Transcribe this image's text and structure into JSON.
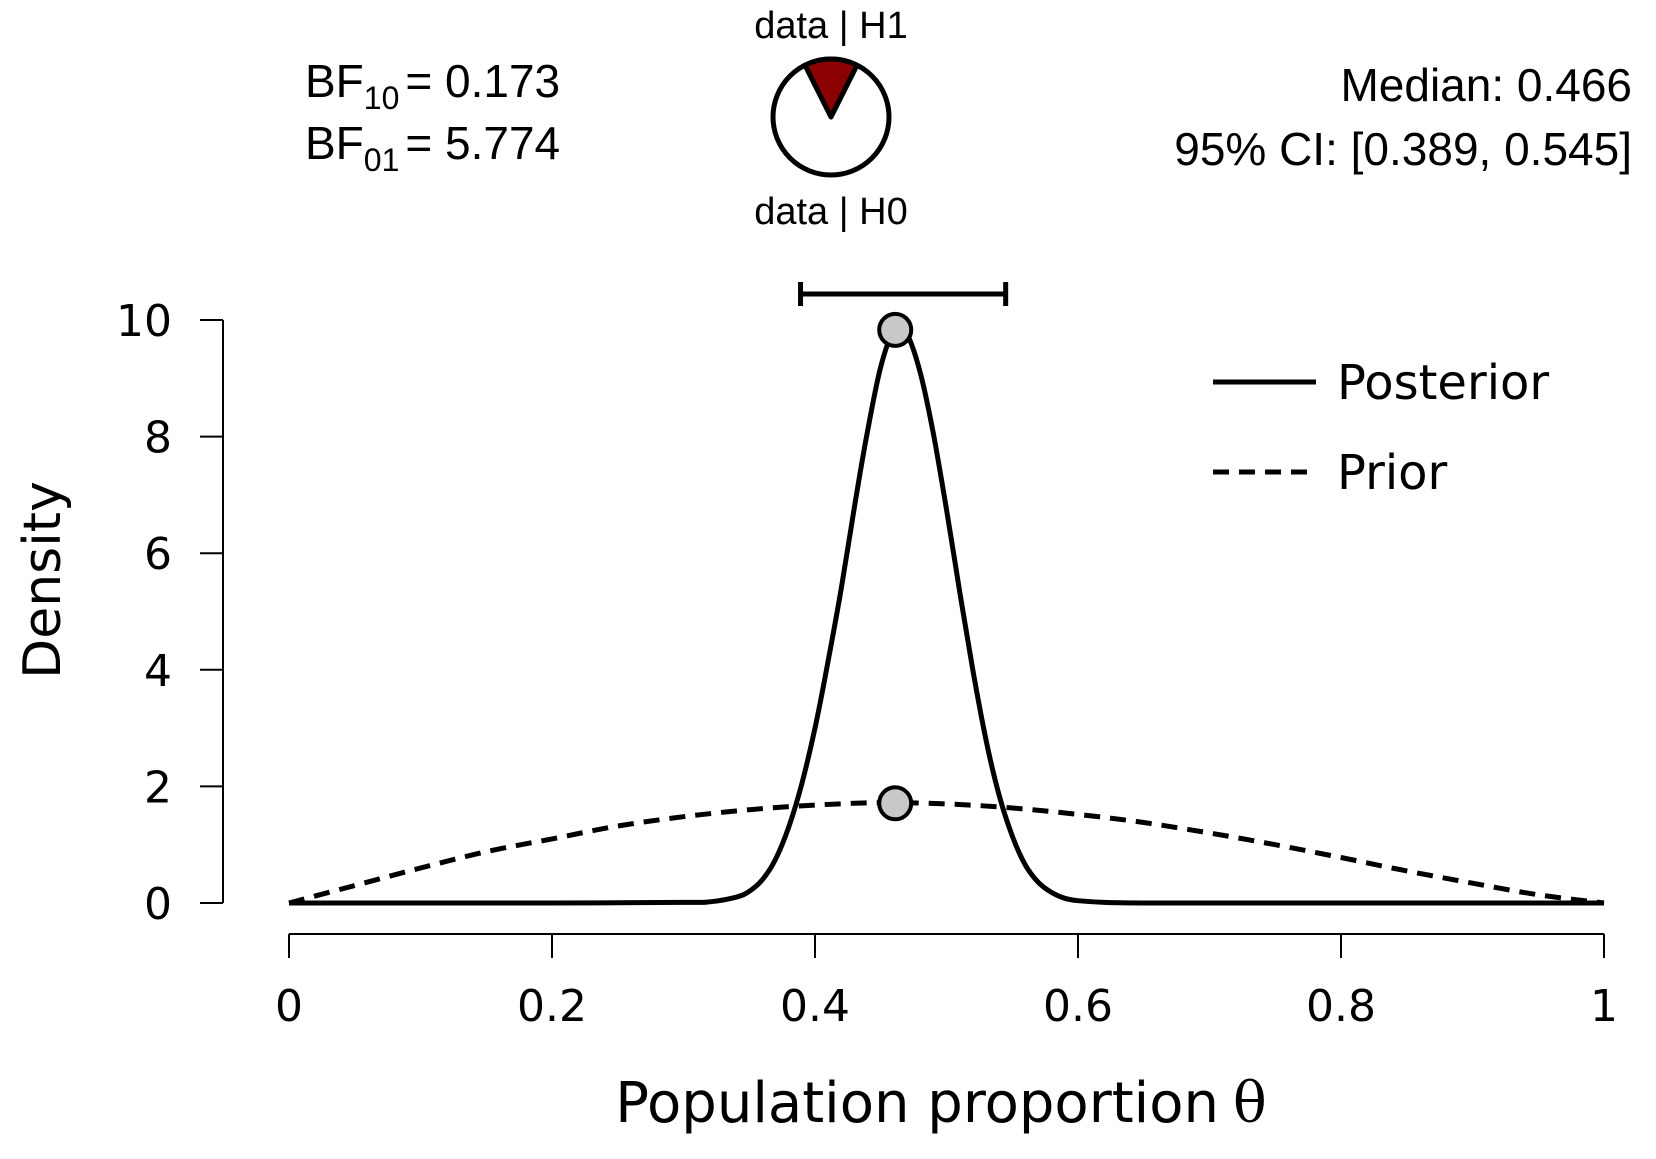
{
  "chart_data": {
    "type": "line",
    "xlabel": "Population proportion",
    "xlabel_symbol": "θ",
    "ylabel": "Density",
    "xlim": [
      0,
      1
    ],
    "ylim": [
      0,
      10
    ],
    "x_ticks": [
      "0",
      "0.2",
      "0.4",
      "0.6",
      "0.8",
      "1"
    ],
    "y_ticks": [
      "0",
      "2",
      "4",
      "6",
      "8",
      "10"
    ],
    "grid": false,
    "legend_position": "top-right",
    "series": [
      {
        "name": "Posterior",
        "style": "solid",
        "x": [
          0,
          0.1,
          0.2,
          0.3,
          0.32,
          0.34,
          0.35,
          0.36,
          0.37,
          0.38,
          0.39,
          0.4,
          0.41,
          0.42,
          0.43,
          0.44,
          0.45,
          0.46,
          0.47,
          0.48,
          0.49,
          0.5,
          0.51,
          0.52,
          0.53,
          0.54,
          0.55,
          0.56,
          0.57,
          0.58,
          0.59,
          0.6,
          0.62,
          0.65,
          0.7,
          0.8,
          0.9,
          1
        ],
        "y": [
          0,
          0,
          0,
          0.01,
          0.02,
          0.1,
          0.2,
          0.4,
          0.75,
          1.3,
          2.05,
          3.0,
          4.15,
          5.4,
          6.8,
          8.1,
          9.2,
          9.8,
          9.75,
          9.1,
          8.05,
          6.75,
          5.35,
          4.0,
          2.8,
          1.85,
          1.15,
          0.65,
          0.35,
          0.18,
          0.08,
          0.04,
          0.01,
          0,
          0,
          0,
          0,
          0
        ]
      },
      {
        "name": "Prior",
        "style": "dashed",
        "x": [
          0,
          0.05,
          0.1,
          0.15,
          0.2,
          0.25,
          0.3,
          0.35,
          0.4,
          0.45,
          0.5,
          0.55,
          0.6,
          0.65,
          0.7,
          0.75,
          0.8,
          0.85,
          0.9,
          0.95,
          1
        ],
        "y": [
          0,
          0.3,
          0.6,
          0.88,
          1.1,
          1.32,
          1.48,
          1.6,
          1.68,
          1.72,
          1.7,
          1.63,
          1.52,
          1.38,
          1.2,
          1.0,
          0.78,
          0.55,
          0.34,
          0.14,
          0
        ]
      }
    ],
    "points": [
      {
        "series": "Posterior",
        "x": 0.461,
        "y": 9.83
      },
      {
        "series": "Prior",
        "x": 0.461,
        "y": 1.71
      }
    ],
    "credible_interval": {
      "lower": 0.389,
      "upper": 0.545,
      "level": "95%"
    },
    "annotations": {
      "bf10_label": "BF",
      "bf10_sub": "10",
      "bf10_value": "= 0.173",
      "bf01_label": "BF",
      "bf01_sub": "01",
      "bf01_value": "= 5.774",
      "median": "Median: 0.466",
      "ci": "95% CI: [0.389, 0.545]",
      "pie_top_label": "data | H1",
      "pie_bottom_label": "data | H0"
    },
    "pie": {
      "values": [
        {
          "label": "data | H1",
          "value": 0.148,
          "color": "#8b0000"
        },
        {
          "label": "data | H0",
          "value": 0.852,
          "color": "#ffffff"
        }
      ]
    },
    "colors": {
      "marker_fill": "#c8c8c8",
      "line": "#000000"
    }
  }
}
